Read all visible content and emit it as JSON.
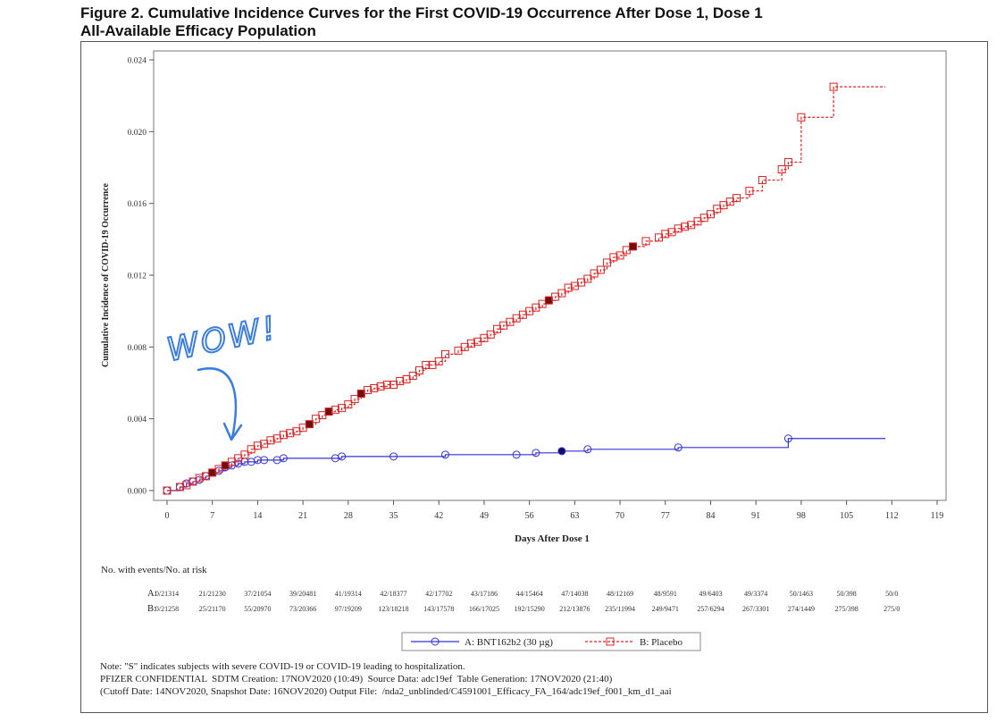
{
  "figure": {
    "title_line1": "Figure 2. Cumulative Incidence Curves for the First COVID-19 Occurrence After Dose 1, Dose 1",
    "title_line2": "All-Available Efficacy Population"
  },
  "chart_data": {
    "type": "line",
    "ylabel": "Cumulative Incidence of COVID-19 Occurrence",
    "xlabel": "Days After Dose 1",
    "xlim": [
      0,
      119
    ],
    "ylim": [
      0,
      0.024
    ],
    "xticks": [
      "0",
      "7",
      "14",
      "21",
      "28",
      "35",
      "42",
      "49",
      "56",
      "63",
      "70",
      "77",
      "84",
      "91",
      "98",
      "105",
      "112",
      "119"
    ],
    "yticks": [
      "0.000",
      "0.004",
      "0.008",
      "0.012",
      "0.016",
      "0.020",
      "0.024"
    ],
    "series": [
      {
        "name": "A: BNT162b2 (30 µg)",
        "color": "#3333dd",
        "line_style": "solid",
        "marker": "circle",
        "x": [
          0,
          2,
          3,
          4,
          5,
          6,
          7,
          8,
          9,
          10,
          11,
          12,
          13,
          14,
          15,
          17,
          18,
          26,
          27,
          35,
          43,
          54,
          57,
          61,
          65,
          79,
          96,
          111
        ],
        "y": [
          0,
          0.0002,
          0.0004,
          0.0005,
          0.0006,
          0.0008,
          0.001,
          0.0011,
          0.0013,
          0.0014,
          0.0015,
          0.0016,
          0.0016,
          0.0017,
          0.0017,
          0.0017,
          0.0018,
          0.0018,
          0.0019,
          0.0019,
          0.002,
          0.002,
          0.0021,
          0.0022,
          0.0023,
          0.0024,
          0.0029,
          0.0029
        ],
        "severe_x": [
          61
        ]
      },
      {
        "name": "B: Placebo",
        "color": "#e02020",
        "line_style": "dashed",
        "marker": "square",
        "x": [
          0,
          2,
          3,
          4,
          5,
          6,
          7,
          8,
          9,
          10,
          11,
          12,
          13,
          14,
          15,
          16,
          17,
          18,
          19,
          20,
          21,
          22,
          23,
          24,
          25,
          26,
          27,
          28,
          29,
          30,
          31,
          32,
          33,
          34,
          35,
          36,
          37,
          38,
          39,
          40,
          41,
          42,
          43,
          45,
          46,
          47,
          48,
          49,
          50,
          51,
          52,
          53,
          54,
          55,
          56,
          57,
          58,
          59,
          60,
          61,
          62,
          63,
          64,
          65,
          66,
          67,
          68,
          69,
          70,
          71,
          72,
          74,
          76,
          77,
          78,
          79,
          80,
          81,
          82,
          83,
          84,
          85,
          86,
          87,
          88,
          90,
          92,
          95,
          96,
          98,
          103,
          111
        ],
        "y": [
          0,
          0.0002,
          0.0003,
          0.0005,
          0.0007,
          0.0008,
          0.001,
          0.0012,
          0.0014,
          0.0016,
          0.0018,
          0.002,
          0.0023,
          0.0025,
          0.0026,
          0.0028,
          0.0029,
          0.0031,
          0.0032,
          0.0033,
          0.0035,
          0.0037,
          0.004,
          0.0042,
          0.0044,
          0.0045,
          0.0046,
          0.0048,
          0.0051,
          0.0054,
          0.0056,
          0.0057,
          0.0058,
          0.0059,
          0.0059,
          0.0061,
          0.0062,
          0.0064,
          0.0067,
          0.007,
          0.007,
          0.0072,
          0.0076,
          0.0078,
          0.008,
          0.0082,
          0.0083,
          0.0085,
          0.0087,
          0.009,
          0.0092,
          0.0094,
          0.0096,
          0.0098,
          0.01,
          0.0102,
          0.0104,
          0.0106,
          0.0108,
          0.011,
          0.0113,
          0.0114,
          0.0116,
          0.0118,
          0.0121,
          0.0123,
          0.0127,
          0.013,
          0.0131,
          0.0134,
          0.0136,
          0.0139,
          0.0141,
          0.0143,
          0.0144,
          0.0146,
          0.0147,
          0.0148,
          0.015,
          0.0152,
          0.0154,
          0.0157,
          0.0159,
          0.0161,
          0.0163,
          0.0167,
          0.0173,
          0.0179,
          0.0183,
          0.0208,
          0.0225,
          0.0225
        ],
        "severe_x": [
          7,
          9,
          22,
          25,
          30,
          59,
          72
        ]
      }
    ],
    "risk_table": {
      "title": "No. with events/No. at risk",
      "rows": [
        {
          "label": "A:",
          "values": [
            "0/21314",
            "21/21230",
            "37/21054",
            "39/20481",
            "41/19314",
            "42/18377",
            "42/17702",
            "43/17186",
            "44/15464",
            "47/14038",
            "48/12169",
            "48/9591",
            "49/6403",
            "49/3374",
            "50/1463",
            "50/398",
            "50/0"
          ]
        },
        {
          "label": "B:",
          "values": [
            "0/21258",
            "25/21170",
            "55/20970",
            "73/20366",
            "97/19209",
            "123/18218",
            "143/17578",
            "166/17025",
            "192/15290",
            "212/13876",
            "235/11994",
            "249/9471",
            "257/6294",
            "267/3301",
            "274/1449",
            "275/398",
            "275/0"
          ]
        }
      ]
    },
    "legend": [
      "A: BNT162b2 (30 µg)",
      "B: Placebo"
    ]
  },
  "annotation": {
    "text": "WOW!"
  },
  "footnotes": {
    "line1": "Note: \"S\" indicates subjects with severe COVID-19 or COVID-19 leading to hospitalization.",
    "line2": "PFIZER CONFIDENTIAL  SDTM Creation: 17NOV2020 (10:49)  Source Data: adc19ef  Table Generation: 17NOV2020 (21:40)",
    "line3": "(Cutoff Date: 14NOV2020, Snapshot Date: 16NOV2020) Output File:  /nda2_unblinded/C4591001_Efficacy_FA_164/adc19ef_f001_km_d1_aai"
  }
}
